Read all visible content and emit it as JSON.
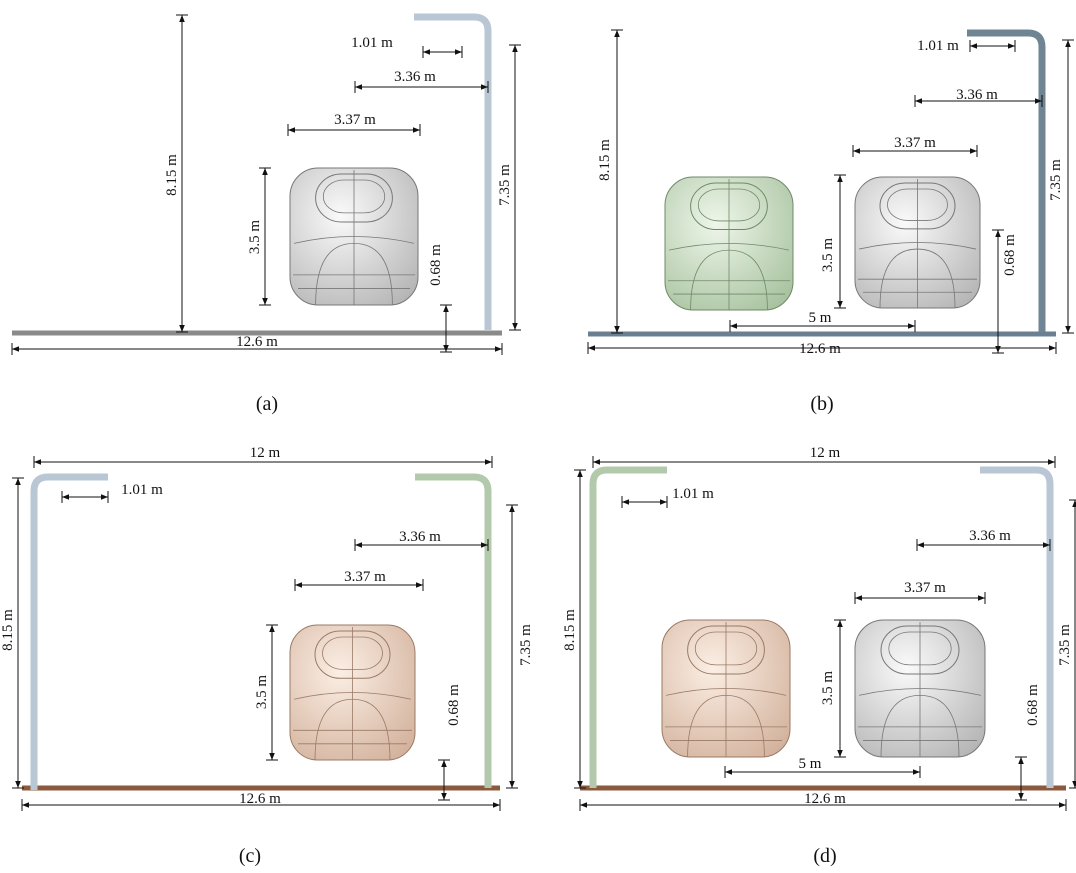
{
  "panels": [
    {
      "caption": "(a)",
      "dimensions": [
        "8.15 m",
        "1.01 m",
        "3.36 m",
        "3.37 m",
        "3.5 m",
        "0.68 m",
        "7.35 m",
        "12.6 m"
      ]
    },
    {
      "caption": "(b)",
      "dimensions": [
        "8.15 m",
        "1.01 m",
        "3.36 m",
        "3.37 m",
        "3.5 m",
        "0.68 m",
        "7.35 m",
        "5 m",
        "12.6 m"
      ]
    },
    {
      "caption": "(c)",
      "dimensions": [
        "12 m",
        "1.01 m",
        "8.15 m",
        "3.36 m",
        "3.37 m",
        "3.5 m",
        "0.68 m",
        "7.35 m",
        "12.6 m"
      ]
    },
    {
      "caption": "(d)",
      "dimensions": [
        "12 m",
        "1.01 m",
        "8.15 m",
        "3.36 m",
        "3.37 m",
        "3.5 m",
        "0.68 m",
        "7.35 m",
        "5 m",
        "12.6 m"
      ]
    }
  ]
}
